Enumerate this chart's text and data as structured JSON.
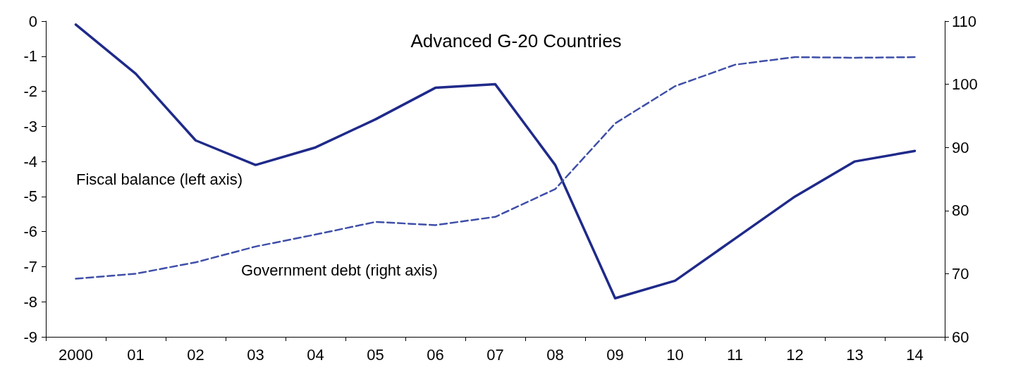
{
  "chart_data": {
    "type": "line",
    "title": "Advanced G-20 Countries",
    "categories": [
      "2000",
      "01",
      "02",
      "03",
      "04",
      "05",
      "06",
      "07",
      "08",
      "09",
      "10",
      "11",
      "12",
      "13",
      "14"
    ],
    "series": [
      {
        "name": "Fiscal balance (left axis)",
        "color": "#1f2a8a",
        "line_style": "solid",
        "values": [
          -0.1,
          -1.5,
          -3.4,
          -4.1,
          -3.6,
          -2.8,
          -1.9,
          -1.8,
          -4.1,
          -7.9,
          -7.4,
          -6.2,
          -5.0,
          -4.0,
          -3.7
        ]
      },
      {
        "name": "Government debt (right axis)",
        "color": "#3f4fa8",
        "line_style": "dashed",
        "axis": "y2",
        "values": [
          69.2,
          70.0,
          71.8,
          74.3,
          76.2,
          78.2,
          77.7,
          79.0,
          83.4,
          93.8,
          99.7,
          103.1,
          104.3,
          104.2,
          104.3
        ]
      }
    ],
    "ylim": [
      -9,
      0
    ],
    "yticks": [
      -9,
      -8,
      -7,
      -6,
      -5,
      -4,
      -3,
      -2,
      -1,
      0
    ],
    "y2lim": [
      60,
      110
    ],
    "y2ticks": [
      60,
      70,
      80,
      90,
      100,
      110
    ],
    "grid": false,
    "legend": false,
    "marker": "none"
  }
}
